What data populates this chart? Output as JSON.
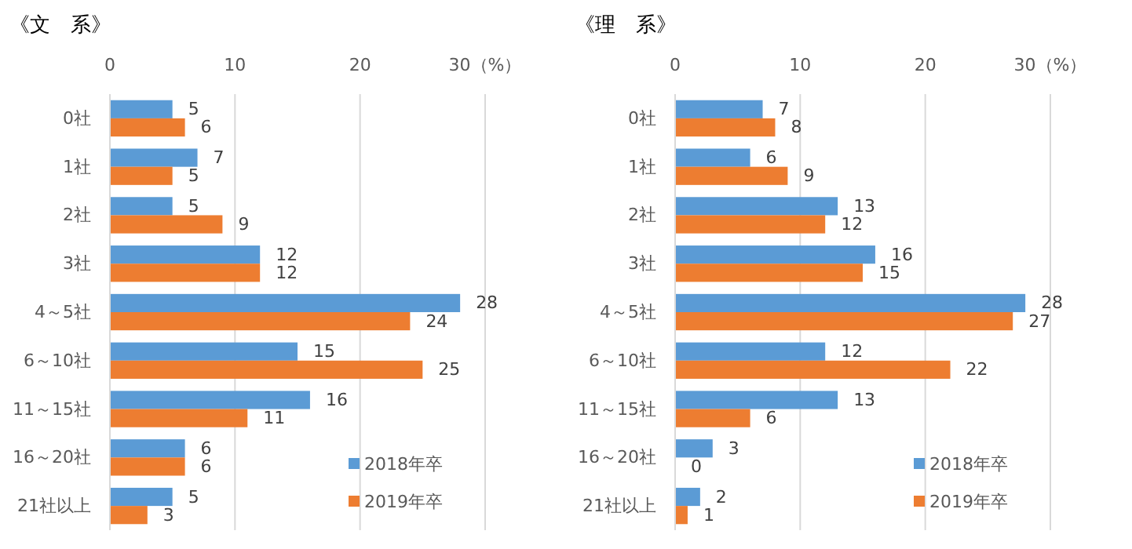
{
  "chart_data": [
    {
      "type": "bar",
      "orientation": "horizontal",
      "title": "《文　系》",
      "categories": [
        "0社",
        "1社",
        "2社",
        "3社",
        "4～5社",
        "6～10社",
        "11～15社",
        "16～20社",
        "21社以上"
      ],
      "series": [
        {
          "name": "2018年卒",
          "color": "#5b9bd5",
          "values": [
            5,
            7,
            5,
            12,
            28,
            15,
            16,
            6,
            5
          ]
        },
        {
          "name": "2019年卒",
          "color": "#ed7d31",
          "values": [
            6,
            5,
            9,
            12,
            24,
            25,
            11,
            6,
            3
          ]
        }
      ],
      "xlim": [
        0,
        30
      ],
      "xticks": [
        0,
        10,
        20,
        {
          "value": 30,
          "label": "30（%）"
        }
      ],
      "grid": "x",
      "data_labels": true,
      "legend": "bottom right"
    },
    {
      "type": "bar",
      "orientation": "horizontal",
      "title": "《理　系》",
      "categories": [
        "0社",
        "1社",
        "2社",
        "3社",
        "4～5社",
        "6～10社",
        "11～15社",
        "16～20社",
        "21社以上"
      ],
      "series": [
        {
          "name": "2018年卒",
          "color": "#5b9bd5",
          "values": [
            7,
            6,
            13,
            16,
            28,
            12,
            13,
            3,
            2
          ]
        },
        {
          "name": "2019年卒",
          "color": "#ed7d31",
          "values": [
            8,
            9,
            12,
            15,
            27,
            22,
            6,
            0,
            1
          ]
        }
      ],
      "xlim": [
        0,
        30
      ],
      "xticks": [
        0,
        10,
        20,
        {
          "value": 30,
          "label": "30（%）"
        }
      ],
      "grid": "x",
      "data_labels": true,
      "legend": "bottom right"
    }
  ]
}
